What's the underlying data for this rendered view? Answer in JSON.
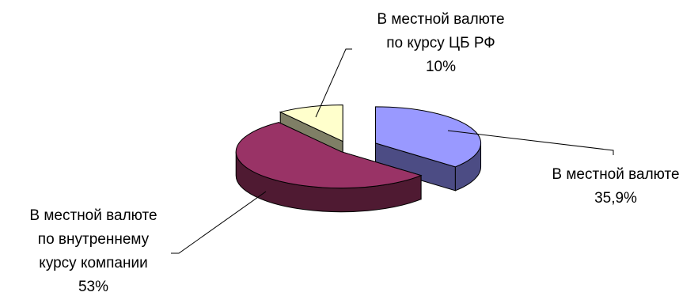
{
  "chart_data": {
    "type": "pie",
    "style": "3d-exploded",
    "slices": [
      {
        "label_lines": [
          "В местной валюте"
        ],
        "value": 35.9,
        "value_label": "35,9%",
        "color": "#9999FF",
        "side_color": "#4C4C84"
      },
      {
        "label_lines": [
          "В местной валюте",
          "по внутреннему",
          "курсу компании"
        ],
        "value": 53,
        "value_label": "53%",
        "color": "#993366",
        "side_color": "#4F1A32"
      },
      {
        "label_lines": [
          "В местной валюте",
          "по курсу ЦБ РФ"
        ],
        "value": 10,
        "value_label": "10%",
        "color": "#FFFFCC",
        "side_color": "#7F7F66"
      }
    ],
    "legend": "none"
  }
}
